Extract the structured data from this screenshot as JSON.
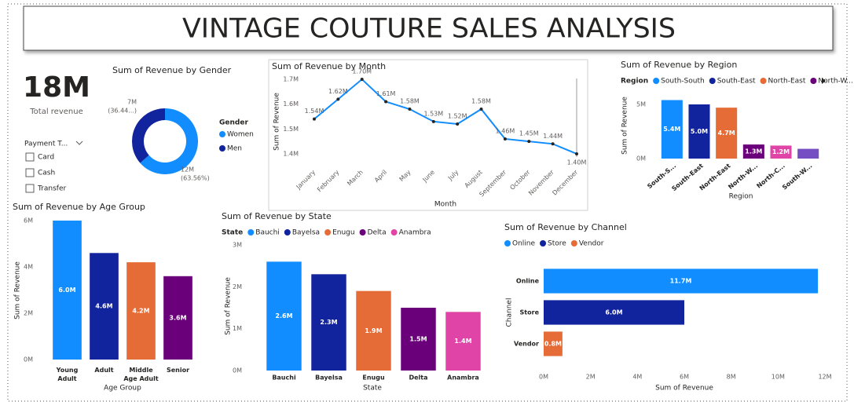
{
  "header": {
    "title": "VINTAGE COUTURE SALES ANALYSIS"
  },
  "kpi": {
    "value": "18M",
    "label": "Total revenue"
  },
  "slicer": {
    "title": "Payment T...",
    "options": [
      "Card",
      "Cash",
      "Transfer"
    ]
  },
  "chart_data": [
    {
      "type": "pie",
      "title": "Sum of Revenue by Gender",
      "categories": [
        "Women",
        "Men"
      ],
      "values": [
        11.7,
        6.7
      ],
      "value_labels": [
        "12M",
        "7M"
      ],
      "percent_labels": [
        "(63.56%)",
        "(36.44...)"
      ],
      "colors": [
        "#118DFF",
        "#12239E"
      ],
      "legend_title": "Gender",
      "legend_position": "right"
    },
    {
      "type": "line",
      "title": "Sum of Revenue by Month",
      "x_label": "Month",
      "y_label": "Sum of Revenue",
      "categories": [
        "January",
        "February",
        "March",
        "April",
        "May",
        "June",
        "July",
        "August",
        "September",
        "October",
        "November",
        "December"
      ],
      "values": [
        1.54,
        1.62,
        1.7,
        1.61,
        1.58,
        1.53,
        1.52,
        1.58,
        1.46,
        1.45,
        1.44,
        1.4
      ],
      "value_labels": [
        "1.54M",
        "1.62M",
        "1.70M",
        "1.61M",
        "1.58M",
        "1.53M",
        "1.52M",
        "1.58M",
        "1.46M",
        "1.45M",
        "1.44M",
        "1.40M"
      ],
      "color": "#118DFF",
      "ylim": [
        1.38,
        1.72
      ],
      "yticks": [
        {
          "value": 1.4,
          "label": "1.4M"
        },
        {
          "value": 1.5,
          "label": "1.5M"
        },
        {
          "value": 1.6,
          "label": "1.6M"
        },
        {
          "value": 1.7,
          "label": "1.7M"
        }
      ]
    },
    {
      "type": "bar",
      "orientation": "vertical",
      "title": "Sum of Revenue by Region",
      "x_label": "Region",
      "y_label": "Sum of Revenue",
      "categories": [
        "South-S...",
        "South-East",
        "North-East",
        "North-W...",
        "North-C...",
        "South-W..."
      ],
      "values": [
        5.4,
        5.0,
        4.7,
        1.3,
        1.2,
        0.9
      ],
      "value_labels": [
        "5.4M",
        "5.0M",
        "4.7M",
        "1.3M",
        "1.2M",
        null
      ],
      "colors": [
        "#118DFF",
        "#12239E",
        "#E66C37",
        "#6B007B",
        "#E044A7",
        "#744EC2"
      ],
      "ylim": [
        0,
        6
      ],
      "yticks": [
        {
          "value": 0,
          "label": "0M"
        },
        {
          "value": 5,
          "label": "5M"
        }
      ],
      "legend_title": "Region",
      "legend_entries": [
        "South-South",
        "South-East",
        "North-East",
        "North-W..."
      ],
      "legend_position": "top"
    },
    {
      "type": "bar",
      "orientation": "vertical",
      "title": "Sum of Revenue by Age Group",
      "x_label": "Age Group",
      "y_label": "Sum of Revenue",
      "categories": [
        "Young Adult",
        "Adult",
        "Middle Age Adult",
        "Senior"
      ],
      "values": [
        6.0,
        4.6,
        4.2,
        3.6
      ],
      "value_labels": [
        "6.0M",
        "4.6M",
        "4.2M",
        "3.6M"
      ],
      "colors": [
        "#118DFF",
        "#12239E",
        "#E66C37",
        "#6B007B"
      ],
      "ylim": [
        0,
        6
      ],
      "yticks": [
        {
          "value": 0,
          "label": "0M"
        },
        {
          "value": 2,
          "label": "2M"
        },
        {
          "value": 4,
          "label": "4M"
        },
        {
          "value": 6,
          "label": "6M"
        }
      ]
    },
    {
      "type": "bar",
      "orientation": "vertical",
      "title": "Sum of Revenue by State",
      "x_label": "State",
      "y_label": "Sum of Revenue",
      "categories": [
        "Bauchi",
        "Bayelsa",
        "Enugu",
        "Delta",
        "Anambra"
      ],
      "values": [
        2.6,
        2.3,
        1.9,
        1.5,
        1.4
      ],
      "value_labels": [
        "2.6M",
        "2.3M",
        "1.9M",
        "1.5M",
        "1.4M"
      ],
      "colors": [
        "#118DFF",
        "#12239E",
        "#E66C37",
        "#6B007B",
        "#E044A7"
      ],
      "ylim": [
        0,
        3
      ],
      "yticks": [
        {
          "value": 0,
          "label": "0M"
        },
        {
          "value": 1,
          "label": "1M"
        },
        {
          "value": 2,
          "label": "2M"
        },
        {
          "value": 3,
          "label": "3M"
        }
      ],
      "legend_title": "State",
      "legend_position": "top"
    },
    {
      "type": "bar",
      "orientation": "horizontal",
      "title": "Sum of Revenue by Channel",
      "x_label": "Sum of Revenue",
      "y_label": "Channel",
      "categories": [
        "Online",
        "Store",
        "Vendor"
      ],
      "values": [
        11.7,
        6.0,
        0.8
      ],
      "value_labels": [
        "11.7M",
        "6.0M",
        "0.8M"
      ],
      "colors": [
        "#118DFF",
        "#12239E",
        "#E66C37"
      ],
      "xlim": [
        0,
        12
      ],
      "xticks": [
        {
          "value": 0,
          "label": "0M"
        },
        {
          "value": 2,
          "label": "2M"
        },
        {
          "value": 4,
          "label": "4M"
        },
        {
          "value": 6,
          "label": "6M"
        },
        {
          "value": 8,
          "label": "8M"
        },
        {
          "value": 10,
          "label": "10M"
        },
        {
          "value": 12,
          "label": "12M"
        }
      ],
      "legend_position": "top"
    }
  ]
}
